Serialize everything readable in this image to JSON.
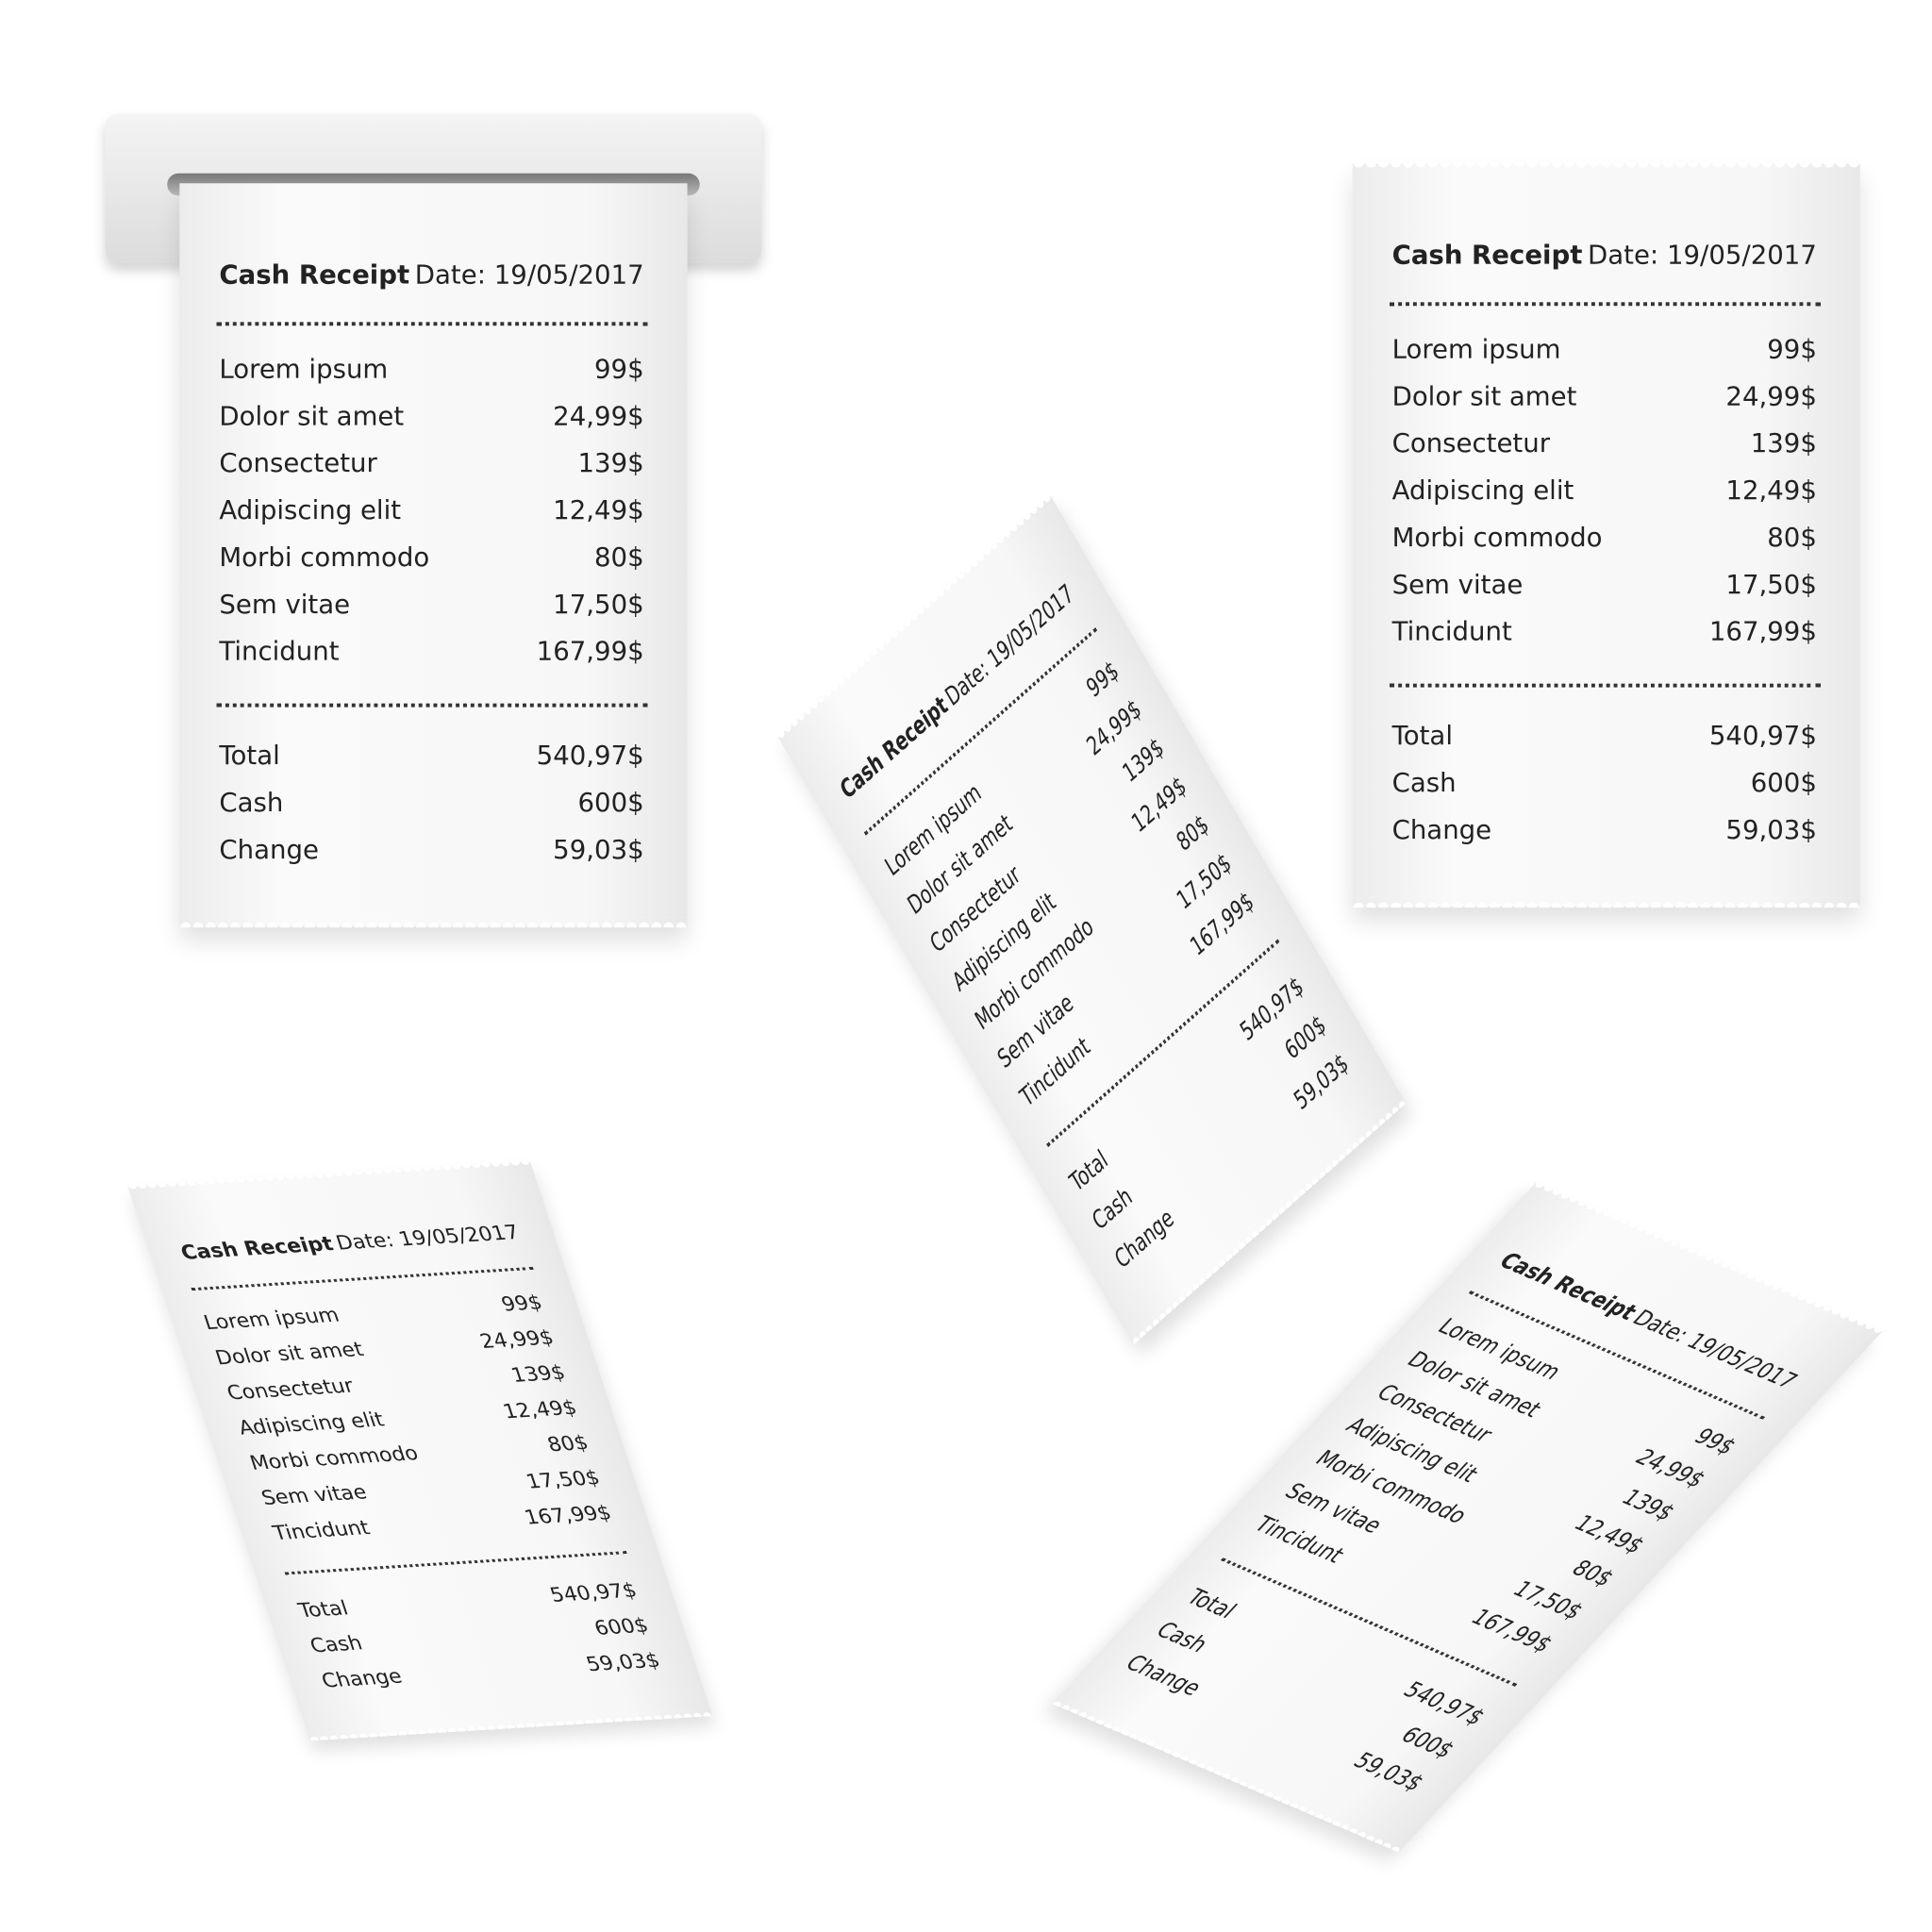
{
  "receipt": {
    "title": "Cash Receipt",
    "date": "Date: 19/05/2017",
    "items": [
      {
        "name": "Lorem ipsum",
        "price": "99$"
      },
      {
        "name": "Dolor sit amet",
        "price": "24,99$"
      },
      {
        "name": "Consectetur",
        "price": "139$"
      },
      {
        "name": "Adipiscing elit",
        "price": "12,49$"
      },
      {
        "name": "Morbi commodo",
        "price": "80$"
      },
      {
        "name": "Sem vitae",
        "price": "17,50$"
      },
      {
        "name": "Tincidunt",
        "price": "167,99$"
      }
    ],
    "totals": [
      {
        "name": "Total",
        "price": "540,97$"
      },
      {
        "name": "Cash",
        "price": "600$"
      },
      {
        "name": "Change",
        "price": "59,03$"
      }
    ]
  }
}
